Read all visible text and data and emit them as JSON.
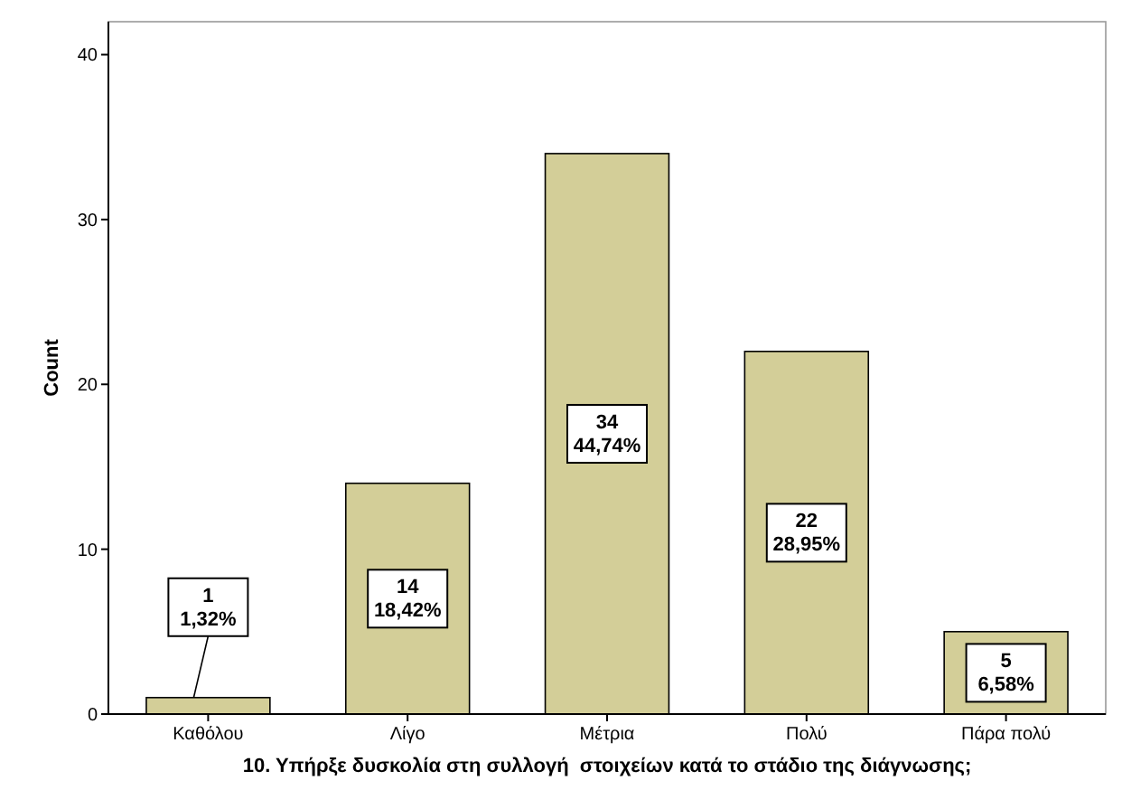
{
  "chart_data": {
    "type": "bar",
    "xlabel": "10. Υπήρξε δυσκολία στη συλλογή  στοιχείων κατά το στάδιο της διάγνωσης;",
    "ylabel": "Count",
    "categories": [
      "Καθόλου",
      "Λίγο",
      "Μέτρια",
      "Πολύ",
      "Πάρα πολύ"
    ],
    "values": [
      1,
      14,
      34,
      22,
      5
    ],
    "value_labels": [
      "1\n1,32%",
      "14\n18,42%",
      "34\n44,74%",
      "22\n28,95%",
      "5\n6,58%"
    ],
    "color": "#d3ce98",
    "ylim": [
      0,
      42
    ],
    "yticks": [
      0,
      10,
      20,
      30,
      40
    ],
    "grid": false
  }
}
